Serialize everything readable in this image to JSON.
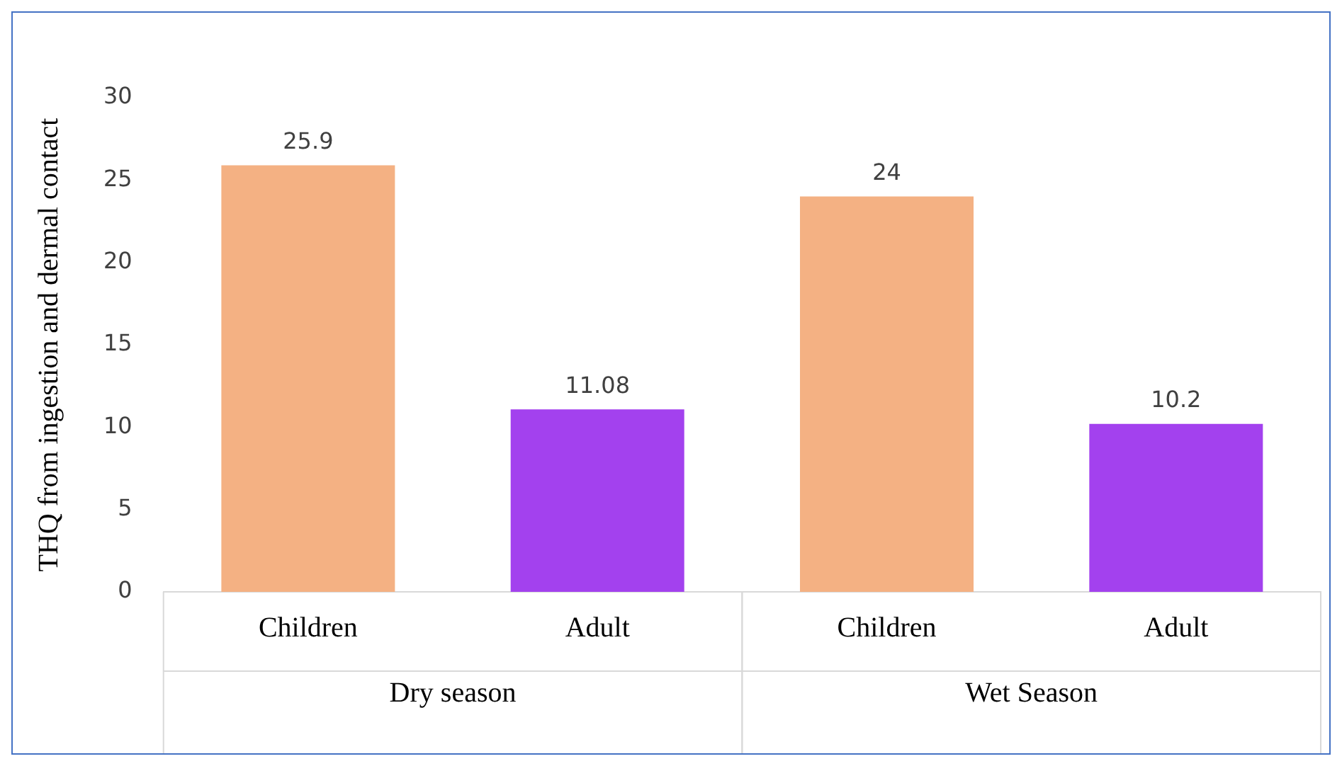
{
  "chart_data": {
    "type": "bar",
    "ylabel": "THQ from ingestion and dermal contact",
    "categories": [
      "Children",
      "Adult",
      "Children",
      "Adult"
    ],
    "values": [
      25.9,
      11.08,
      24,
      10.2
    ],
    "colors": [
      "#f4b183",
      "#a341ee",
      "#f4b183",
      "#a341ee"
    ],
    "ylim": [
      0,
      30
    ],
    "yticks": [
      0,
      5,
      10,
      15,
      20,
      25,
      30
    ],
    "grid": false,
    "legend": false,
    "data_labels": true,
    "annotations": [
      "Dry season",
      "Wet Season"
    ]
  }
}
